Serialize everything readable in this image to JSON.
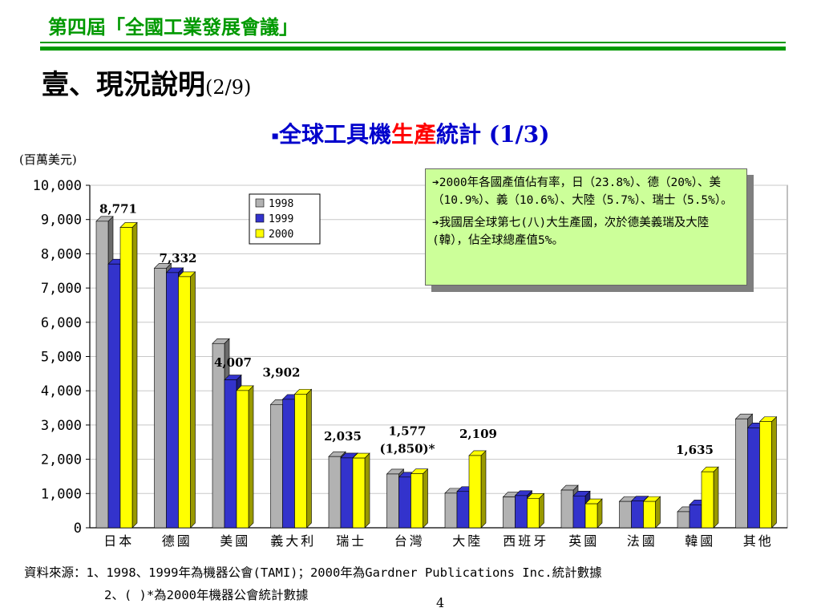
{
  "header": {
    "title": "第四屆「全國工業發展會議」"
  },
  "page": {
    "title": "壹、現況說明",
    "title_suffix": "(2/9)",
    "subtitle_bullet": "▪",
    "subtitle_a": "全球工具機",
    "subtitle_b": "生產",
    "subtitle_c": "統計 (1/3)",
    "unit": "(百萬美元)",
    "page_number": "4"
  },
  "callout": {
    "bullet1": "2000年各國產值佔有率，日（23.8%）、德（20%）、美（10.9%）、義（10.6%）、大陸（5.7%）、瑞士（5.5%）。",
    "bullet2": "我國居全球第七(八)大生產國，次於德美義瑞及大陸(韓），佔全球總產值5%。",
    "arrow": "➔"
  },
  "source": {
    "line1": "資料來源：1、1998、1999年為機器公會(TAMI)；2000年為Gardner Publications Inc.統計數據",
    "line2": "2、( )*為2000年機器公會統計數據"
  },
  "colors": {
    "s1998": "#b2b2b2",
    "s1999": "#3333cc",
    "s2000": "#ffff00",
    "header_green": "#009900"
  },
  "chart_data": {
    "type": "bar",
    "title": "",
    "xlabel": "",
    "ylabel": "",
    "categories": [
      "日本",
      "德國",
      "美國",
      "義大利",
      "瑞士",
      "台灣",
      "大陸",
      "西班牙",
      "英國",
      "法國",
      "韓國",
      "其他"
    ],
    "series": [
      {
        "name": "1998",
        "values": [
          8950,
          7580,
          5380,
          3600,
          2080,
          1570,
          1010,
          900,
          1100,
          770,
          470,
          3180
        ]
      },
      {
        "name": "1999",
        "values": [
          7700,
          7450,
          4320,
          3750,
          2040,
          1480,
          1060,
          940,
          930,
          780,
          670,
          2920
        ]
      },
      {
        "name": "2000",
        "values": [
          8771,
          7332,
          4007,
          3902,
          2035,
          1577,
          2109,
          860,
          700,
          770,
          1635,
          3100
        ]
      }
    ],
    "data_labels": [
      {
        "category": "日本",
        "text": "8,771"
      },
      {
        "category": "德國",
        "text": "7,332"
      },
      {
        "category": "美國",
        "text": "4,007"
      },
      {
        "category": "義大利",
        "text": "3,902"
      },
      {
        "category": "瑞士",
        "text": "2,035"
      },
      {
        "category": "台灣",
        "text": "1,577"
      },
      {
        "category": "台灣",
        "text": "(1,850)*"
      },
      {
        "category": "大陸",
        "text": "2,109"
      },
      {
        "category": "韓國",
        "text": "1,635"
      }
    ],
    "ylim": [
      0,
      10000
    ],
    "yticks": [
      "0",
      "1,000",
      "2,000",
      "3,000",
      "4,000",
      "5,000",
      "6,000",
      "7,000",
      "8,000",
      "9,000",
      "10,000"
    ],
    "grid": true,
    "legend": "top-left inside plot"
  }
}
